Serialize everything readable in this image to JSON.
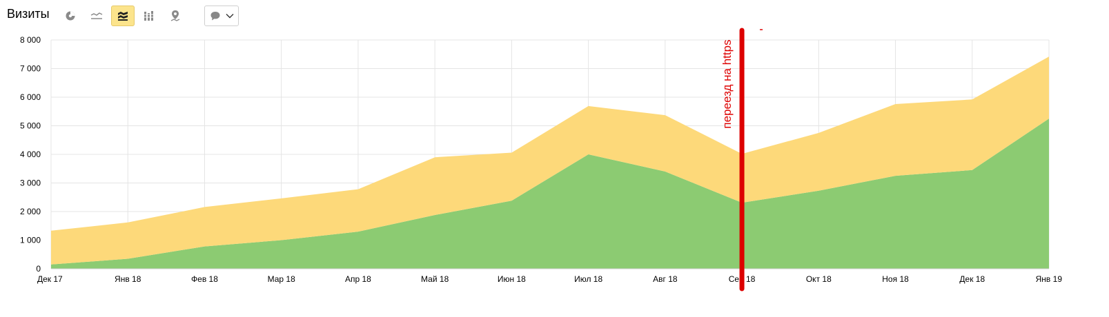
{
  "header": {
    "title": "Визиты",
    "icons": [
      "pie-chart-icon",
      "line-chart-icon",
      "stacked-area-icon",
      "column-chart-icon",
      "map-icon",
      "comment-icon"
    ],
    "active_icon": "stacked-area-icon"
  },
  "chart_data": {
    "type": "area",
    "stacked": true,
    "categories": [
      "Дек 17",
      "Янв 18",
      "Фев 18",
      "Мар 18",
      "Апр 18",
      "Май 18",
      "Июн 18",
      "Июл 18",
      "Авг 18",
      "Сен 18",
      "Окт 18",
      "Ноя 18",
      "Дек 18",
      "Янв 19"
    ],
    "series": [
      {
        "name": "green",
        "color": "#8ccb72",
        "values": [
          150,
          350,
          780,
          1000,
          1300,
          1880,
          2380,
          4000,
          3400,
          2310,
          2730,
          3250,
          3450,
          5250
        ]
      },
      {
        "name": "yellow",
        "color": "#fdd97a",
        "values": [
          1180,
          1270,
          1380,
          1460,
          1480,
          2020,
          1680,
          1690,
          1970,
          1710,
          2020,
          2510,
          2470,
          2170
        ]
      }
    ],
    "ylim": [
      0,
      8000
    ],
    "yticks": [
      0,
      1000,
      2000,
      3000,
      4000,
      5000,
      6000,
      7000,
      8000
    ],
    "ytick_labels": [
      "0",
      "1 000",
      "2 000",
      "3 000",
      "4 000",
      "5 000",
      "6 000",
      "7 000",
      "8 000"
    ],
    "grid": true,
    "annotation": {
      "text": "переезд на https",
      "at_category": "Сен 18",
      "color": "#dd0000"
    }
  }
}
